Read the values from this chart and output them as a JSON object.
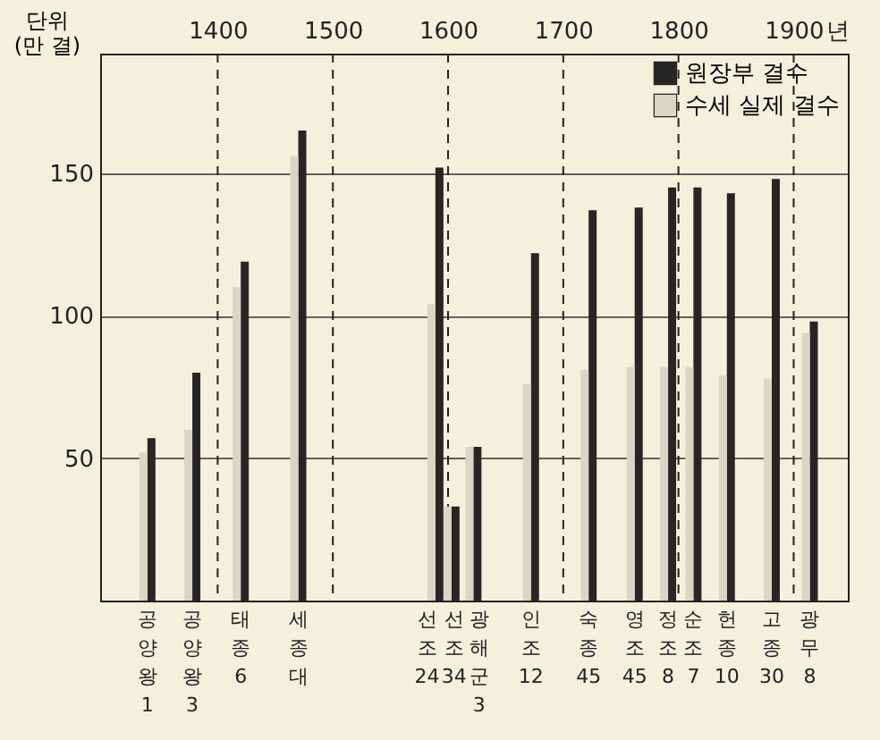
{
  "chart_data": {
    "type": "bar",
    "ylabel": "단위 (만 결)",
    "x": [
      1339,
      1378,
      1420,
      1470,
      1589,
      1603,
      1622,
      1672,
      1722,
      1762,
      1791,
      1813,
      1842,
      1881,
      1914
    ],
    "series": [
      {
        "name": "원장부 결수",
        "color": "#262626",
        "values": [
          57,
          80,
          119,
          165,
          152,
          33,
          54,
          122,
          137,
          138,
          145,
          145,
          143,
          148,
          98
        ]
      },
      {
        "name": "수세 실제 결수",
        "color": "#d9d6c6",
        "values": [
          52,
          60,
          110,
          156,
          104,
          33,
          54,
          76,
          81,
          82,
          82,
          82,
          79,
          78,
          94
        ]
      }
    ],
    "xlim": [
      1298,
      1947
    ],
    "xticks": [
      1400,
      1500,
      1600,
      1700,
      1800,
      1900
    ],
    "xlabel": "년",
    "ylim": [
      0,
      192
    ],
    "yticks": [
      50,
      100,
      150
    ],
    "ref_lines": [
      {
        "axis": "x",
        "value": 1400,
        "line_style": "dashed"
      },
      {
        "axis": "x",
        "value": 1500,
        "line_style": "dashed"
      },
      {
        "axis": "x",
        "value": 1600,
        "line_style": "dashed"
      },
      {
        "axis": "x",
        "value": 1700,
        "line_style": "dashed"
      },
      {
        "axis": "x",
        "value": 1800,
        "line_style": "dashed"
      },
      {
        "axis": "x",
        "value": 1900,
        "line_style": "dashed"
      }
    ],
    "annotations": [
      {
        "text": "공양왕 1",
        "x": 1339,
        "y": 0
      },
      {
        "text": "공양왕 3",
        "x": 1378,
        "y": 0
      },
      {
        "text": "태종 6",
        "x": 1420,
        "y": 0
      },
      {
        "text": "세종대",
        "x": 1470,
        "y": 0
      },
      {
        "text": "선조 24",
        "x": 1589,
        "y": 0
      },
      {
        "text": "선조 34",
        "x": 1603,
        "y": 0
      },
      {
        "text": "광해군 3",
        "x": 1622,
        "y": 0
      },
      {
        "text": "인조 12",
        "x": 1672,
        "y": 0
      },
      {
        "text": "숙종 45",
        "x": 1722,
        "y": 0
      },
      {
        "text": "영조 45",
        "x": 1762,
        "y": 0
      },
      {
        "text": "정조 8",
        "x": 1791,
        "y": 0
      },
      {
        "text": "순조 7",
        "x": 1813,
        "y": 0
      },
      {
        "text": "헌종 10",
        "x": 1842,
        "y": 0
      },
      {
        "text": "고종 30",
        "x": 1881,
        "y": 0
      },
      {
        "text": "광무 8",
        "x": 1914,
        "y": 0
      }
    ],
    "grid": "y",
    "legend": "top right"
  }
}
